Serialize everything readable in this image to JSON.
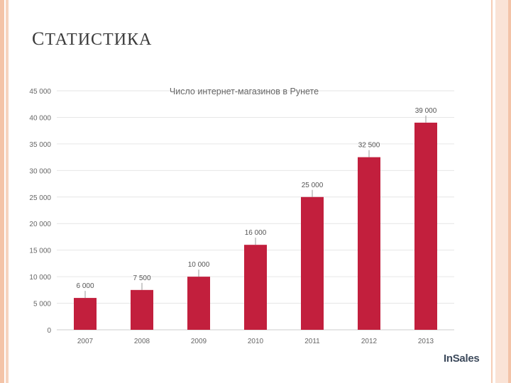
{
  "slide": {
    "title": "Статистика"
  },
  "brand": {
    "name": "InSales"
  },
  "colors": {
    "bar": "#c21f3d",
    "grid": "#e6e6e6",
    "text": "#666666"
  },
  "chart_data": {
    "type": "bar",
    "title": "Число интернет-магазинов в Рунете",
    "xlabel": "",
    "ylabel": "",
    "categories": [
      "2007",
      "2008",
      "2009",
      "2010",
      "2011",
      "2012",
      "2013"
    ],
    "values": [
      6000,
      7500,
      10000,
      16000,
      25000,
      32500,
      39000
    ],
    "value_labels": [
      "6 000",
      "7 500",
      "10 000",
      "16 000",
      "25 000",
      "32 500",
      "39 000"
    ],
    "ylim": [
      0,
      45000
    ],
    "yticks": [
      0,
      5000,
      10000,
      15000,
      20000,
      25000,
      30000,
      35000,
      40000,
      45000
    ],
    "ytick_labels": [
      "0",
      "5 000",
      "10 000",
      "15 000",
      "20 000",
      "25 000",
      "30 000",
      "35 000",
      "40 000",
      "45 000"
    ],
    "grid": true
  }
}
